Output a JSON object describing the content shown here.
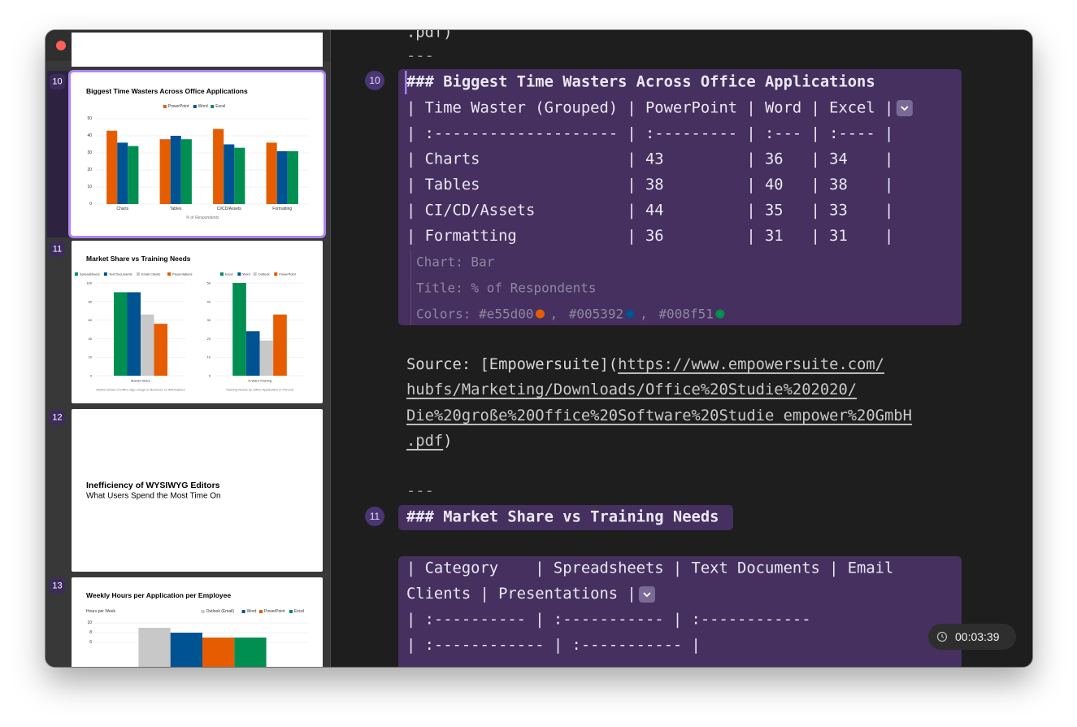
{
  "sidebar": {
    "slides": [
      {
        "number": "10",
        "title": "Biggest Time Wasters Across Office Applications",
        "charts": [
          {
            "type": "bar",
            "legend": "top-center",
            "categories": [
              "Charts",
              "Tables",
              "CI/CD/Assets",
              "Formatting"
            ],
            "series": [
              {
                "name": "PowerPoint",
                "color": "#e55d00",
                "values": [
                  43,
                  38,
                  44,
                  36
                ]
              },
              {
                "name": "Word",
                "color": "#005392",
                "values": [
                  36,
                  40,
                  35,
                  31
                ]
              },
              {
                "name": "Excel",
                "color": "#008f51",
                "values": [
                  34,
                  38,
                  33,
                  31
                ]
              }
            ],
            "ylim": [
              0,
              50
            ],
            "yticks": [
              0,
              10,
              20,
              30,
              40,
              50
            ],
            "grid": true,
            "x_label": "% of Respondents"
          }
        ]
      },
      {
        "number": "11",
        "title": "Market Share vs Training Needs",
        "charts": [
          {
            "type": "bar",
            "legend": "top-center",
            "categories": [
              "Market Share"
            ],
            "series": [
              {
                "name": "Spreadsheets",
                "color": "#008f51",
                "values": [
                  90
                ]
              },
              {
                "name": "Text Documents",
                "color": "#005392",
                "values": [
                  90
                ]
              },
              {
                "name": "Email Clients",
                "color": "#c8c8c8",
                "values": [
                  66
                ]
              },
              {
                "name": "Presentations",
                "color": "#e55d00",
                "values": [
                  56
                ]
              }
            ],
            "ylim": [
              0,
              100
            ],
            "yticks": [
              0,
              20,
              40,
              60,
              80,
              100
            ],
            "grid": true,
            "x_label": "Market Share of Office App Usage in Business vs Alternatives"
          },
          {
            "type": "bar",
            "legend": "top-center",
            "categories": [
              "% Want Training"
            ],
            "series": [
              {
                "name": "Excel",
                "color": "#008f51",
                "values": [
                  50
                ]
              },
              {
                "name": "Word",
                "color": "#005392",
                "values": [
                  24
                ]
              },
              {
                "name": "Outlook",
                "color": "#c8c8c8",
                "values": [
                  19
                ]
              },
              {
                "name": "PowerPoint",
                "color": "#e55d00",
                "values": [
                  33
                ]
              }
            ],
            "ylim": [
              0,
              50
            ],
            "yticks": [
              0,
              10,
              20,
              30,
              40,
              50
            ],
            "grid": true,
            "x_label": "Training Needs by Office Application in Percent"
          }
        ]
      },
      {
        "number": "12",
        "title": "Inefficiency of WYSIWYG Editors",
        "subtitle": "What Users Spend the Most Time On"
      },
      {
        "number": "13",
        "title": "Weekly Hours per Application per Employee",
        "charts": [
          {
            "type": "bar",
            "legend": "top-right",
            "y_label": "Hours per Week",
            "categories": [
              null
            ],
            "series": [
              {
                "name": "Outlook (Email)",
                "color": "#c8c8c8",
                "values": [
                  9
                ]
              },
              {
                "name": "Word",
                "color": "#005392",
                "values": [
                  8
                ]
              },
              {
                "name": "PowerPoint",
                "color": "#e55d00",
                "values": [
                  7
                ]
              },
              {
                "name": "Excel",
                "color": "#008f51",
                "values": [
                  7
                ]
              }
            ],
            "ylim": [
              0,
              10
            ],
            "yticks": [
              6,
              8,
              10
            ],
            "grid": true
          }
        ]
      }
    ]
  },
  "editor": {
    "top_lines": [
      ".pdf)",
      "---"
    ],
    "block_10": {
      "line_number": "10",
      "heading": "### Biggest Time Wasters Across Office Applications",
      "table_lines": [
        "| Time Waster (Grouped) | PowerPoint | Word | Excel |",
        "| :-------------------- | :--------- | :--- | :---- |",
        "| Charts                | 43         | 36   | 34    |",
        "| Tables                | 38         | 40   | 38    |",
        "| CI/CD/Assets          | 44         | 35   | 33    |",
        "| Formatting            | 36         | 31   | 31    |"
      ],
      "meta": {
        "chart": "Chart: Bar",
        "title": "Title: % of Respondents",
        "colors_label": "Colors:",
        "colors": [
          "#e55d00",
          "#005392",
          "#008f51"
        ],
        "separator": ","
      }
    },
    "source": {
      "prefix": "Source: [",
      "link_text": "Empowersuite",
      "mid": "](",
      "url_lines": [
        "https://www.empowersuite.com/",
        "hubfs/Marketing/Downloads/Office%20Studie%202020/",
        "Die%20große%20Office%20Software%20Studie_empower%20GmbH",
        ".pdf"
      ],
      "suffix": ")"
    },
    "separator": "---",
    "block_11": {
      "line_number": "11",
      "heading": "### Market Share vs Training Needs",
      "table_lines": [
        "| Category    | Spreadsheets | Text Documents | Email",
        "Clients | Presentations |",
        "| :---------- | :----------- | :------------",
        "| :------------ | :----------- |"
      ]
    }
  },
  "timer": "00:03:39"
}
